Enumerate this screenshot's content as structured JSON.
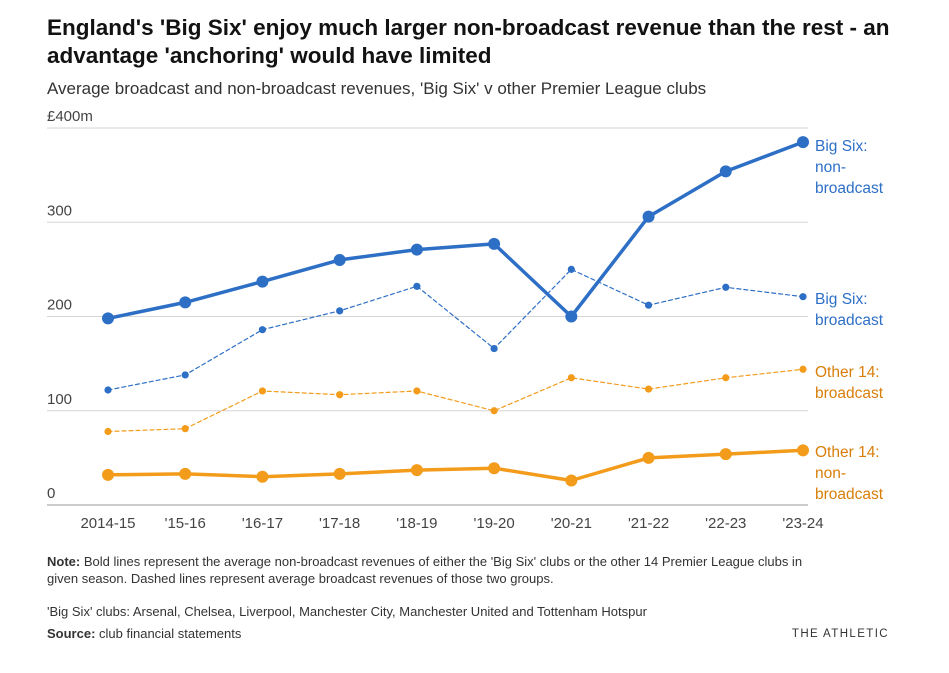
{
  "title": "England's 'Big Six' enjoy much larger non-broadcast revenue than the rest - an advantage 'anchoring' would have limited",
  "subtitle": "Average broadcast and non-broadcast revenues, 'Big Six' v other Premier League clubs",
  "footer": {
    "note_label": "Note:",
    "note_text": " Bold lines represent the average non-broadcast revenues of either the 'Big Six' clubs or the other 14 Premier League clubs in given season. Dashed lines represent average broadcast revenues of those two groups.",
    "clubs_text": "'Big Six' clubs: Arsenal, Chelsea, Liverpool, Manchester City, Manchester United and Tottenham Hotspur",
    "source_label": "Source:",
    "source_text": " club financial statements",
    "brand": "THE ATHLETIC"
  },
  "colors": {
    "blue": "#2e6fc6",
    "blue_label": "#2e6fc6",
    "orange": "#f39c1c",
    "orange_label": "#d97e0a",
    "grid": "#d6d6d6",
    "axis_text": "#444444"
  },
  "chart_data": {
    "type": "line",
    "title": "Average broadcast and non-broadcast revenues, 'Big Six' v other Premier League clubs",
    "xlabel": "",
    "ylabel": "",
    "ylim": [
      0,
      400
    ],
    "yticks": [
      0,
      100,
      200,
      300,
      400
    ],
    "ytick_labels": [
      "0",
      "100",
      "200",
      "300",
      "£400m"
    ],
    "categories": [
      "2014-15",
      "'15-16",
      "'16-17",
      "'17-18",
      "'18-19",
      "'19-20",
      "'20-21",
      "'21-22",
      "'22-23",
      "'23-24"
    ],
    "series": [
      {
        "name": "Big Six: non-broadcast",
        "label_lines": [
          "Big Six:",
          "non-",
          "broadcast"
        ],
        "style": "bold",
        "color": "blue",
        "values": [
          198,
          215,
          237,
          260,
          271,
          277,
          200,
          306,
          354,
          385
        ]
      },
      {
        "name": "Big Six: broadcast",
        "label_lines": [
          "Big Six:",
          "broadcast"
        ],
        "style": "dashed",
        "color": "blue",
        "values": [
          122,
          138,
          186,
          206,
          232,
          166,
          250,
          212,
          231,
          221
        ]
      },
      {
        "name": "Other 14: broadcast",
        "label_lines": [
          "Other 14:",
          "broadcast"
        ],
        "style": "dashed",
        "color": "orange",
        "values": [
          78,
          81,
          121,
          117,
          121,
          100,
          135,
          123,
          135,
          144
        ]
      },
      {
        "name": "Other 14: non-broadcast",
        "label_lines": [
          "Other 14:",
          "non-",
          "broadcast"
        ],
        "style": "bold",
        "color": "orange",
        "values": [
          32,
          33,
          30,
          33,
          37,
          39,
          26,
          50,
          54,
          58
        ]
      }
    ]
  }
}
